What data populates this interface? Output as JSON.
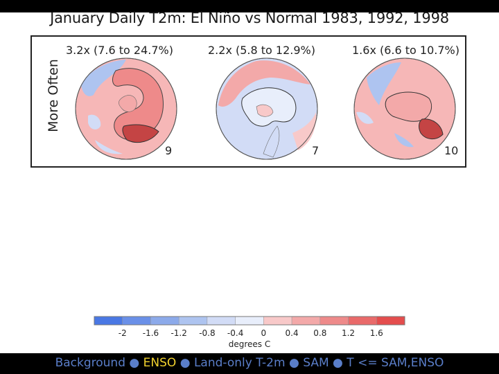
{
  "title": "January Daily T2m:  El Niño vs Normal 1983, 1992, 1998",
  "y_label": "More Often",
  "panels": [
    {
      "stat": "3.2x (7.6 to 24.7%)",
      "count": "9"
    },
    {
      "stat": "2.2x (5.8 to 12.9%)",
      "count": "7"
    },
    {
      "stat": "1.6x (6.6 to 10.7%)",
      "count": "10"
    }
  ],
  "colorbar": {
    "ticks": [
      "-2",
      "-1.6",
      "-1.2",
      "-0.8",
      "-0.4",
      "0",
      "0.4",
      "0.8",
      "1.2",
      "1.6"
    ],
    "label": "degrees C",
    "colors": [
      "#4a78e4",
      "#6a90e8",
      "#8caaea",
      "#aec4f0",
      "#d2dcf6",
      "#e8eefb",
      "#f8c9c9",
      "#f3a9a9",
      "#ee8a8a",
      "#e96a6a",
      "#e44d4d"
    ]
  },
  "legend": {
    "background": "Background",
    "sep": "●",
    "enso": "ENSO",
    "land_only": "Land-only T-2m",
    "sam": "SAM",
    "t_sam_enso": "T <= SAM,ENSO"
  }
}
